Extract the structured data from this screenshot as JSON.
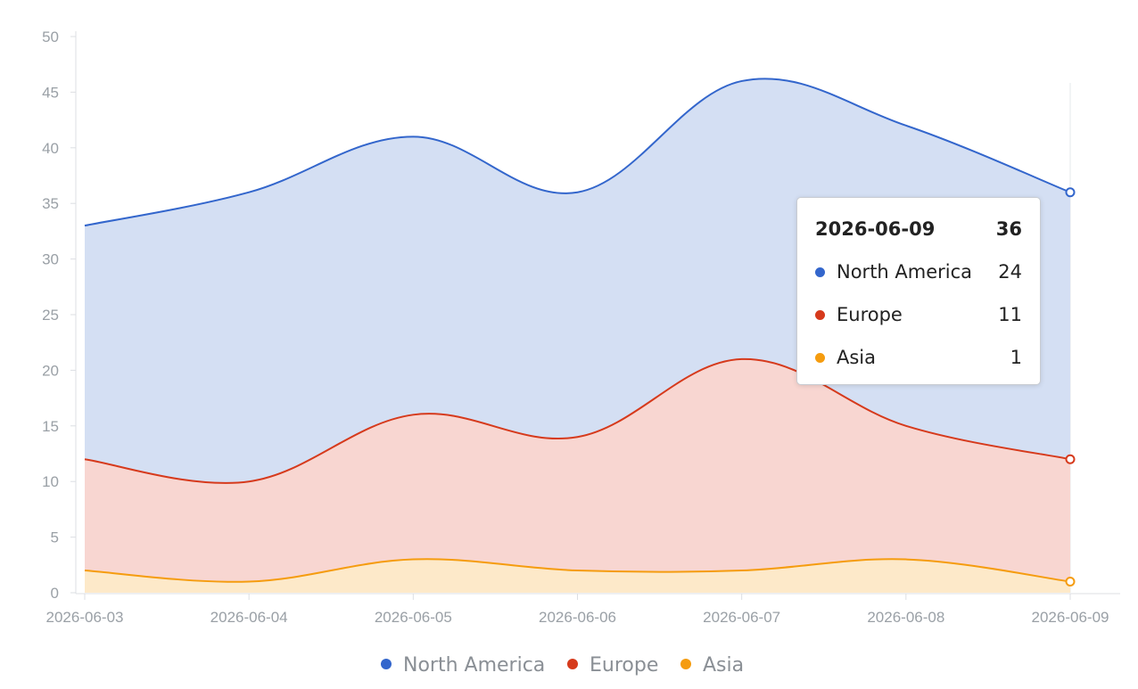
{
  "chart_data": {
    "type": "area",
    "stacked": true,
    "x": [
      "2026-06-03",
      "2026-06-04",
      "2026-06-05",
      "2026-06-06",
      "2026-06-07",
      "2026-06-08",
      "2026-06-09"
    ],
    "series": [
      {
        "name": "Asia",
        "values": [
          2,
          1,
          3,
          2,
          2,
          3,
          1
        ],
        "color": "#f59c0f",
        "fill": "#fde9c9"
      },
      {
        "name": "Europe",
        "values": [
          10,
          9,
          13,
          12,
          19,
          12,
          11
        ],
        "color": "#d63a1c",
        "fill": "#f8d6d1"
      },
      {
        "name": "North America",
        "values": [
          21,
          26,
          25,
          22,
          25,
          27,
          24
        ],
        "color": "#3366cc",
        "fill": "#d4dff3"
      }
    ],
    "ylim": [
      0,
      50
    ],
    "yticks": [
      "0",
      "5",
      "10",
      "15",
      "20",
      "25",
      "30",
      "35",
      "40",
      "45",
      "50"
    ],
    "xlabel": "",
    "ylabel": "",
    "grid": false,
    "legend": {
      "placement": "bottom",
      "items": [
        {
          "name": "North America",
          "color": "#3366cc"
        },
        {
          "name": "Europe",
          "color": "#d63a1c"
        },
        {
          "name": "Asia",
          "color": "#f59c0f"
        }
      ]
    },
    "tooltip": {
      "title": "2026-06-09",
      "total": "36",
      "rows": [
        {
          "name": "North America",
          "value": "24",
          "color": "#3366cc"
        },
        {
          "name": "Europe",
          "value": "11",
          "color": "#d63a1c"
        },
        {
          "name": "Asia",
          "value": "1",
          "color": "#f59c0f"
        }
      ]
    }
  }
}
